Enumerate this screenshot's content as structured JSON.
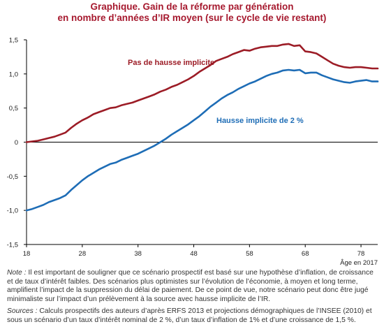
{
  "title": {
    "line1": "Graphique. Gain de la réforme par génération",
    "line2": "en nombre d’années d’IR moyen (sur le cycle de vie restant)"
  },
  "colors": {
    "red": "#9c1c26",
    "blue": "#1e6db6",
    "title": "#a6192e",
    "axis": "#000000"
  },
  "chart_data": {
    "type": "line",
    "xlabel": "Âge en 2017",
    "x_ticks": [
      "18",
      "28",
      "38",
      "48",
      "58",
      "68",
      "78"
    ],
    "y_ticks": [
      "1,5",
      "1,0",
      "0,5",
      "0",
      "-0,5",
      "-1,0",
      "-1,5"
    ],
    "ylim": [
      -1.5,
      1.5
    ],
    "xlim": [
      18,
      81
    ],
    "grid": false,
    "series": [
      {
        "name": "Pas de hausse implicite",
        "color": "#9c1c26",
        "x": [
          18,
          19,
          20,
          21,
          22,
          23,
          24,
          25,
          26,
          27,
          28,
          29,
          30,
          31,
          32,
          33,
          34,
          35,
          36,
          37,
          38,
          39,
          40,
          41,
          42,
          43,
          44,
          45,
          46,
          47,
          48,
          49,
          50,
          51,
          52,
          53,
          54,
          55,
          56,
          57,
          58,
          59,
          60,
          61,
          62,
          63,
          64,
          65,
          66,
          67,
          68,
          69,
          70,
          71,
          72,
          73,
          74,
          75,
          76,
          77,
          78,
          79,
          80,
          81
        ],
        "values": [
          0.0,
          0.01,
          0.02,
          0.04,
          0.06,
          0.08,
          0.11,
          0.14,
          0.21,
          0.27,
          0.32,
          0.36,
          0.41,
          0.44,
          0.47,
          0.5,
          0.51,
          0.54,
          0.56,
          0.58,
          0.61,
          0.64,
          0.67,
          0.7,
          0.74,
          0.77,
          0.81,
          0.84,
          0.88,
          0.92,
          0.97,
          1.03,
          1.08,
          1.13,
          1.19,
          1.22,
          1.25,
          1.29,
          1.32,
          1.35,
          1.34,
          1.37,
          1.39,
          1.4,
          1.41,
          1.41,
          1.43,
          1.44,
          1.41,
          1.42,
          1.33,
          1.32,
          1.3,
          1.25,
          1.2,
          1.15,
          1.12,
          1.1,
          1.09,
          1.1,
          1.1,
          1.09,
          1.08,
          1.08
        ]
      },
      {
        "name": "Hausse implicite de 2 %",
        "color": "#1e6db6",
        "x": [
          18,
          19,
          20,
          21,
          22,
          23,
          24,
          25,
          26,
          27,
          28,
          29,
          30,
          31,
          32,
          33,
          34,
          35,
          36,
          37,
          38,
          39,
          40,
          41,
          42,
          43,
          44,
          45,
          46,
          47,
          48,
          49,
          50,
          51,
          52,
          53,
          54,
          55,
          56,
          57,
          58,
          59,
          60,
          61,
          62,
          63,
          64,
          65,
          66,
          67,
          68,
          69,
          70,
          71,
          72,
          73,
          74,
          75,
          76,
          77,
          78,
          79,
          80,
          81
        ],
        "values": [
          -1.0,
          -0.98,
          -0.95,
          -0.92,
          -0.88,
          -0.85,
          -0.82,
          -0.78,
          -0.7,
          -0.63,
          -0.56,
          -0.5,
          -0.45,
          -0.4,
          -0.36,
          -0.32,
          -0.3,
          -0.26,
          -0.23,
          -0.2,
          -0.17,
          -0.13,
          -0.09,
          -0.05,
          0.0,
          0.05,
          0.11,
          0.16,
          0.21,
          0.26,
          0.32,
          0.38,
          0.45,
          0.52,
          0.58,
          0.64,
          0.69,
          0.73,
          0.78,
          0.82,
          0.86,
          0.89,
          0.93,
          0.97,
          1.0,
          1.02,
          1.05,
          1.06,
          1.05,
          1.06,
          1.01,
          1.02,
          1.02,
          0.98,
          0.95,
          0.92,
          0.9,
          0.88,
          0.87,
          0.89,
          0.9,
          0.91,
          0.89,
          0.89
        ]
      }
    ]
  },
  "labels": {
    "red": "Pas de hausse implicite",
    "blue": "Hausse implicite de 2 %"
  },
  "notes": {
    "note_label": "Note :",
    "note_text": " Il est important de souligner que ce scénario prospectif est basé sur une hypothèse d’inflation, de croissance et de taux d’intérêt faibles. Des scénarios plus optimistes sur l’évolution de l’économie, à moyen et long terme, amplifient l’impact de la suppression du délai de paiement. De ce point de vue, notre scénario peut donc être jugé minimaliste sur l’impact d’un prélèvement à la source avec hausse implicite de l’IR.",
    "sources_label": "Sources :",
    "sources_text": " Calculs prospectifs des auteurs d’après ERFS 2013 et projections démographiques de l’INSEE (2010) et sous un scénario d’un taux d’intérêt nominal de 2 %, d’un taux d’inflation de 1% et d’une croissance de 1,5 %."
  }
}
